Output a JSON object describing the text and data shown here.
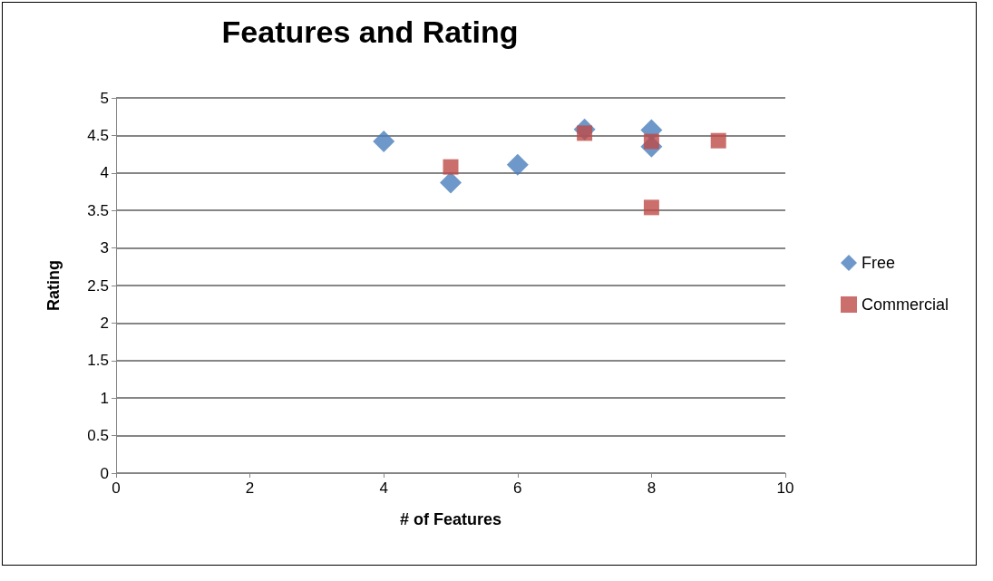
{
  "chart_data": {
    "type": "scatter",
    "title": "Features and Rating",
    "xlabel": "# of Features",
    "ylabel": "Rating",
    "xlim": [
      0,
      10
    ],
    "xticks": [
      0,
      2,
      4,
      6,
      8,
      10
    ],
    "ylim": [
      0,
      5
    ],
    "yticks": [
      0,
      0.5,
      1,
      1.5,
      2,
      2.5,
      3,
      3.5,
      4,
      4.5,
      5
    ],
    "grid": "y",
    "legend": "right",
    "series": [
      {
        "name": "Free",
        "color": "#4a7ebb",
        "marker": "diamond",
        "x": [
          4,
          5,
          6,
          7,
          8,
          8
        ],
        "values": [
          4.42,
          3.87,
          4.11,
          4.58,
          4.57,
          4.35
        ]
      },
      {
        "name": "Commercial",
        "color": "#be4b48",
        "marker": "square",
        "x": [
          5,
          7,
          8,
          8,
          9
        ],
        "values": [
          4.08,
          4.53,
          4.42,
          3.54,
          4.43
        ]
      }
    ]
  }
}
